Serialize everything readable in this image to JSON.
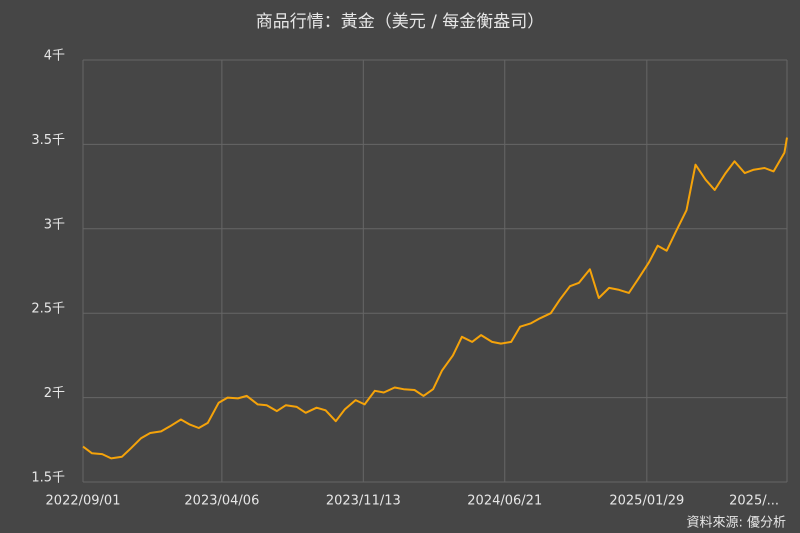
{
  "chart_data": {
    "type": "line",
    "title": "商品行情：黃金（美元 / 每金衡盎司）",
    "source": "資料來源: 優分析",
    "x": [
      "2022/09/01",
      "2022/09/15",
      "2022/10/01",
      "2022/10/15",
      "2022/11/01",
      "2022/11/15",
      "2022/12/01",
      "2022/12/15",
      "2023/01/01",
      "2023/01/15",
      "2023/02/01",
      "2023/02/15",
      "2023/03/01",
      "2023/03/15",
      "2023/04/01",
      "2023/04/15",
      "2023/05/01",
      "2023/05/15",
      "2023/06/01",
      "2023/06/15",
      "2023/07/01",
      "2023/07/15",
      "2023/08/01",
      "2023/08/15",
      "2023/09/01",
      "2023/09/15",
      "2023/10/01",
      "2023/10/15",
      "2023/11/01",
      "2023/11/15",
      "2023/12/01",
      "2023/12/15",
      "2024/01/01",
      "2024/01/15",
      "2024/02/01",
      "2024/02/15",
      "2024/03/01",
      "2024/03/15",
      "2024/04/01",
      "2024/04/15",
      "2024/05/01",
      "2024/05/15",
      "2024/06/01",
      "2024/06/15",
      "2024/07/01",
      "2024/07/15",
      "2024/08/01",
      "2024/08/15",
      "2024/09/01",
      "2024/09/15",
      "2024/10/01",
      "2024/10/15",
      "2024/11/01",
      "2024/11/15",
      "2024/12/01",
      "2024/12/15",
      "2025/01/01",
      "2025/01/15",
      "2025/02/01",
      "2025/02/15",
      "2025/03/01",
      "2025/03/15",
      "2025/04/01",
      "2025/04/15",
      "2025/05/01",
      "2025/05/15",
      "2025/06/01",
      "2025/06/15",
      "2025/07/01",
      "2025/07/15",
      "2025/08/01",
      "2025/08/15",
      "2025/09/01",
      "2025/09/05"
    ],
    "series": [
      {
        "name": "黃金",
        "color": "#f5a30a",
        "values": [
          1710,
          1670,
          1665,
          1640,
          1650,
          1700,
          1760,
          1790,
          1800,
          1830,
          1870,
          1840,
          1820,
          1850,
          1970,
          2000,
          1995,
          2010,
          1960,
          1955,
          1920,
          1955,
          1945,
          1910,
          1940,
          1925,
          1860,
          1930,
          1985,
          1960,
          2040,
          2030,
          2060,
          2050,
          2045,
          2010,
          2050,
          2160,
          2250,
          2360,
          2330,
          2370,
          2330,
          2320,
          2330,
          2420,
          2440,
          2470,
          2500,
          2580,
          2660,
          2680,
          2760,
          2590,
          2650,
          2640,
          2620,
          2700,
          2800,
          2900,
          2870,
          2980,
          3110,
          3380,
          3290,
          3230,
          3330,
          3400,
          3330,
          3350,
          3360,
          3340,
          3450,
          3540
        ]
      }
    ],
    "xlim": [
      "2022/09/01",
      "2025/09/05"
    ],
    "xticks": [
      {
        "value": "2022/09/01",
        "label": "2022/09/01"
      },
      {
        "value": "2023/04/06",
        "label": "2023/04/06"
      },
      {
        "value": "2023/11/13",
        "label": "2023/11/13"
      },
      {
        "value": "2024/06/21",
        "label": "2024/06/21"
      },
      {
        "value": "2025/01/29",
        "label": "2025/01/29"
      },
      {
        "value": "2025/09/05",
        "label": "2025/..."
      }
    ],
    "ylim": [
      1500,
      4000
    ],
    "yticks": [
      {
        "value": 1500,
        "label": "1.5千"
      },
      {
        "value": 2000,
        "label": "2千"
      },
      {
        "value": 2500,
        "label": "2.5千"
      },
      {
        "value": 3000,
        "label": "3千"
      },
      {
        "value": 3500,
        "label": "3.5千"
      },
      {
        "value": 4000,
        "label": "4千"
      }
    ],
    "grid": true
  }
}
